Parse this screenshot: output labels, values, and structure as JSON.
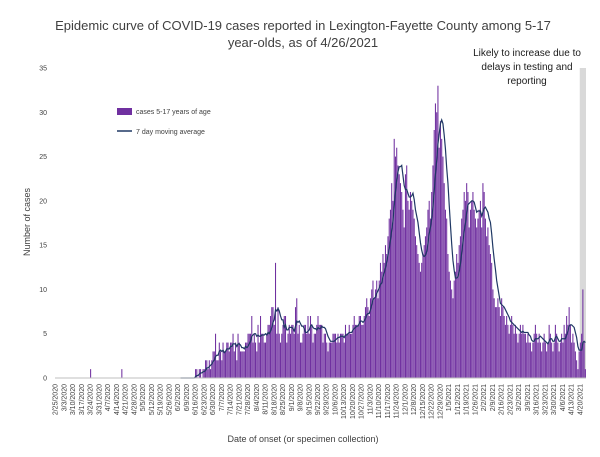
{
  "chart_data": {
    "type": "bar",
    "title_line1": "Epidemic curve of COVID-19 cases reported in Lexington-Fayette County among 5-17",
    "title_line2": "year-olds, as of 4/26/2021",
    "xlabel": "Date of onset (or specimen collection)",
    "ylabel": "Number of cases",
    "ylim": [
      0,
      35
    ],
    "yticks": [
      0,
      5,
      10,
      15,
      20,
      25,
      30,
      35
    ],
    "x_tick_labels": [
      "2/25/2020",
      "3/3/2020",
      "3/10/2020",
      "3/17/2020",
      "3/24/2020",
      "3/31/2020",
      "4/7/2020",
      "4/14/2020",
      "4/21/2020",
      "4/28/2020",
      "5/5/2020",
      "5/12/2020",
      "5/19/2020",
      "5/26/2020",
      "6/2/2020",
      "6/9/2020",
      "6/16/2020",
      "6/23/2020",
      "6/30/2020",
      "7/7/2020",
      "7/14/2020",
      "7/21/2020",
      "7/28/2020",
      "8/4/2020",
      "8/11/2020",
      "8/18/2020",
      "8/25/2020",
      "9/1/2020",
      "9/8/2020",
      "9/15/2020",
      "9/22/2020",
      "9/29/2020",
      "10/6/2020",
      "10/13/2020",
      "10/20/2020",
      "10/27/2020",
      "11/3/2020",
      "11/10/2020",
      "11/17/2020",
      "11/24/2020",
      "12/1/2020",
      "12/8/2020",
      "12/15/2020",
      "12/22/2020",
      "12/29/2020",
      "1/5/2021",
      "1/12/2021",
      "1/19/2021",
      "1/26/2021",
      "2/2/2021",
      "2/9/2021",
      "2/16/2021",
      "2/23/2021",
      "3/2/2021",
      "3/9/2021",
      "3/16/2021",
      "3/23/2021",
      "3/30/2021",
      "4/6/2021",
      "4/13/2021",
      "4/20/2021"
    ],
    "series": [
      {
        "name": "cases 5-17 years of age",
        "kind": "bar",
        "color": "#7030a0",
        "start_date": "2/25/2020",
        "values": [
          0,
          0,
          0,
          0,
          0,
          0,
          0,
          0,
          0,
          0,
          0,
          0,
          0,
          0,
          0,
          0,
          0,
          0,
          0,
          0,
          0,
          0,
          0,
          0,
          0,
          0,
          0,
          0,
          1,
          0,
          0,
          0,
          0,
          0,
          0,
          0,
          0,
          0,
          0,
          0,
          0,
          0,
          0,
          0,
          0,
          0,
          0,
          0,
          0,
          0,
          0,
          0,
          0,
          1,
          0,
          0,
          0,
          0,
          0,
          0,
          0,
          0,
          0,
          0,
          0,
          0,
          0,
          0,
          0,
          0,
          0,
          0,
          0,
          0,
          0,
          0,
          0,
          0,
          0,
          0,
          0,
          0,
          0,
          0,
          0,
          0,
          0,
          0,
          0,
          0,
          0,
          0,
          0,
          0,
          0,
          0,
          0,
          0,
          0,
          0,
          0,
          0,
          0,
          0,
          0,
          0,
          0,
          0,
          0,
          0,
          0,
          0,
          1,
          1,
          0,
          1,
          1,
          0,
          1,
          1,
          2,
          2,
          1,
          2,
          1,
          2,
          3,
          3,
          5,
          2,
          2,
          4,
          3,
          2,
          4,
          3,
          3,
          4,
          4,
          3,
          4,
          4,
          5,
          3,
          4,
          2,
          5,
          4,
          3,
          3,
          3,
          3,
          4,
          4,
          5,
          5,
          5,
          7,
          4,
          5,
          4,
          3,
          6,
          4,
          7,
          5,
          5,
          4,
          4,
          5,
          6,
          6,
          7,
          8,
          8,
          6,
          13,
          5,
          8,
          5,
          4,
          5,
          6,
          7,
          7,
          4,
          5,
          6,
          5,
          6,
          6,
          5,
          8,
          9,
          5,
          6,
          4,
          4,
          5,
          6,
          6,
          5,
          7,
          5,
          7,
          6,
          4,
          5,
          5,
          6,
          7,
          6,
          6,
          6,
          4,
          5,
          5,
          4,
          3,
          4,
          4,
          4,
          5,
          5,
          5,
          4,
          5,
          4,
          5,
          5,
          5,
          4,
          6,
          5,
          5,
          6,
          5,
          5,
          6,
          7,
          6,
          6,
          6,
          7,
          7,
          6,
          6,
          7,
          8,
          9,
          8,
          7,
          9,
          10,
          11,
          9,
          10,
          11,
          9,
          11,
          13,
          12,
          14,
          13,
          15,
          14,
          16,
          18,
          19,
          22,
          20,
          27,
          25,
          26,
          24,
          23,
          22,
          21,
          19,
          17,
          23,
          24,
          20,
          19,
          21,
          20,
          19,
          18,
          16,
          15,
          14,
          13,
          12,
          13,
          14,
          15,
          16,
          17,
          19,
          20,
          18,
          21,
          24,
          28,
          31,
          30,
          33,
          26,
          29,
          27,
          25,
          22,
          19,
          18,
          14,
          12,
          11,
          10,
          9,
          11,
          12,
          14,
          13,
          15,
          16,
          18,
          19,
          21,
          20,
          22,
          21,
          17,
          19,
          20,
          21,
          19,
          18,
          17,
          18,
          19,
          20,
          17,
          22,
          21,
          18,
          16,
          17,
          15,
          14,
          13,
          10,
          9,
          8,
          8,
          9,
          8,
          7,
          9,
          8,
          7,
          6,
          7,
          6,
          5,
          6,
          7,
          6,
          5,
          6,
          5,
          4,
          5,
          6,
          5,
          6,
          5,
          5,
          4,
          5,
          4,
          4,
          3,
          4,
          5,
          6,
          5,
          4,
          5,
          4,
          3,
          4,
          5,
          4,
          3,
          4,
          6,
          5,
          4,
          3,
          4,
          6,
          5,
          4,
          3,
          4,
          5,
          4,
          6,
          5,
          7,
          6,
          8,
          6,
          4,
          5,
          4,
          3,
          2,
          1,
          3,
          4,
          5,
          10,
          4,
          1
        ]
      },
      {
        "name": "7 day moving average",
        "kind": "line",
        "color": "#1f3864"
      }
    ],
    "annotation": {
      "text_lines": [
        "Likely to increase due to",
        "delays in testing and",
        "reporting"
      ],
      "shade_from": "4/20/2021",
      "shade_color": "#d9d9d9"
    },
    "legend_position": "upper-left"
  }
}
